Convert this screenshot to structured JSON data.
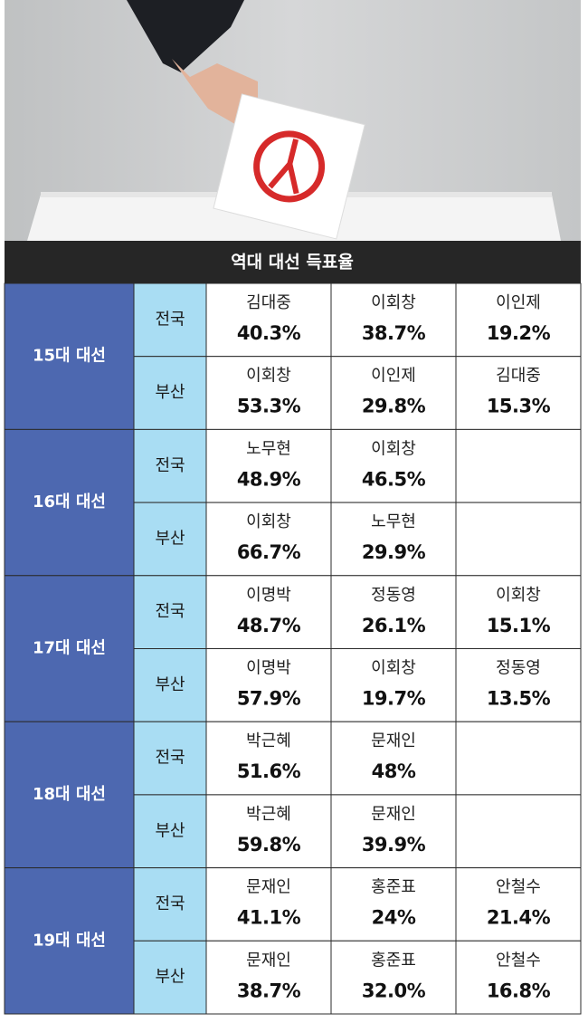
{
  "header": {
    "title": "역대 대선 득표율"
  },
  "elections": [
    {
      "label": "15대 대선",
      "rows": [
        {
          "region": "전국",
          "candidates": [
            {
              "name": "김대중",
              "share": "40.3%"
            },
            {
              "name": "이회창",
              "share": "38.7%"
            },
            {
              "name": "이인제",
              "share": "19.2%"
            }
          ]
        },
        {
          "region": "부산",
          "candidates": [
            {
              "name": "이회창",
              "share": "53.3%"
            },
            {
              "name": "이인제",
              "share": "29.8%"
            },
            {
              "name": "김대중",
              "share": "15.3%"
            }
          ]
        }
      ]
    },
    {
      "label": "16대 대선",
      "rows": [
        {
          "region": "전국",
          "candidates": [
            {
              "name": "노무현",
              "share": "48.9%"
            },
            {
              "name": "이회창",
              "share": "46.5%"
            }
          ]
        },
        {
          "region": "부산",
          "candidates": [
            {
              "name": "이회창",
              "share": "66.7%"
            },
            {
              "name": "노무현",
              "share": "29.9%"
            }
          ]
        }
      ]
    },
    {
      "label": "17대 대선",
      "rows": [
        {
          "region": "전국",
          "candidates": [
            {
              "name": "이명박",
              "share": "48.7%"
            },
            {
              "name": "정동영",
              "share": "26.1%"
            },
            {
              "name": "이회창",
              "share": "15.1%"
            }
          ]
        },
        {
          "region": "부산",
          "candidates": [
            {
              "name": "이명박",
              "share": "57.9%"
            },
            {
              "name": "이회창",
              "share": "19.7%"
            },
            {
              "name": "정동영",
              "share": "13.5%"
            }
          ]
        }
      ]
    },
    {
      "label": "18대 대선",
      "rows": [
        {
          "region": "전국",
          "candidates": [
            {
              "name": "박근혜",
              "share": "51.6%"
            },
            {
              "name": "문재인",
              "share": "48%"
            }
          ]
        },
        {
          "region": "부산",
          "candidates": [
            {
              "name": "박근혜",
              "share": "59.8%"
            },
            {
              "name": "문재인",
              "share": "39.9%"
            }
          ]
        }
      ]
    },
    {
      "label": "19대 대선",
      "rows": [
        {
          "region": "전국",
          "candidates": [
            {
              "name": "문재인",
              "share": "41.1%"
            },
            {
              "name": "홍준표",
              "share": "24%"
            },
            {
              "name": "안철수",
              "share": "21.4%"
            }
          ]
        },
        {
          "region": "부산",
          "candidates": [
            {
              "name": "문재인",
              "share": "38.7%"
            },
            {
              "name": "홍준표",
              "share": "32.0%"
            },
            {
              "name": "안철수",
              "share": "16.8%"
            }
          ]
        }
      ]
    }
  ]
}
